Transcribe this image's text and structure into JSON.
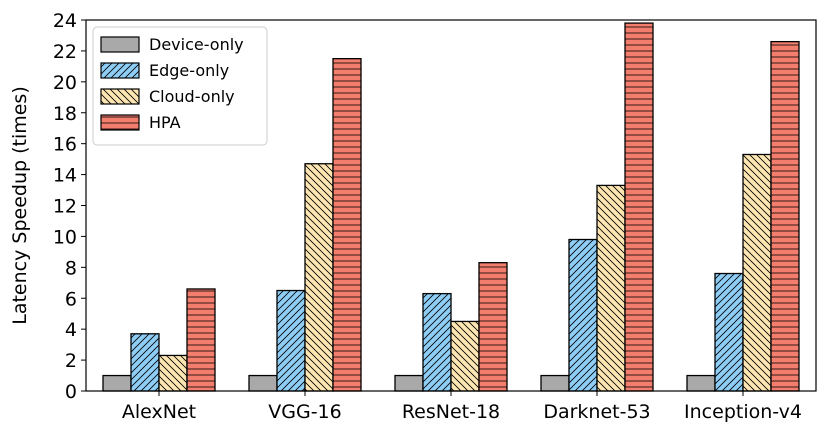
{
  "chart_data": {
    "type": "bar",
    "title": "",
    "xlabel": "",
    "ylabel": "Latency Speedup (times)",
    "ylim": [
      0,
      24
    ],
    "yticks": [
      "0",
      "2",
      "4",
      "6",
      "8",
      "10",
      "12",
      "14",
      "16",
      "18",
      "20",
      "22",
      "24"
    ],
    "categories": [
      "AlexNet",
      "VGG-16",
      "ResNet-18",
      "Darknet-53",
      "Inception-v4"
    ],
    "legend_location": "top-left",
    "series": [
      {
        "name": "Device-only",
        "color": "#a9a9a9",
        "hatch": "none",
        "values": [
          1,
          1,
          1,
          1,
          1
        ]
      },
      {
        "name": "Edge-only",
        "color": "#8ecdf5",
        "hatch": "forward-diagonal",
        "values": [
          3.7,
          6.5,
          6.3,
          9.8,
          7.6
        ]
      },
      {
        "name": "Cloud-only",
        "color": "#fde6b2",
        "hatch": "back-diagonal",
        "values": [
          2.3,
          14.7,
          4.5,
          13.3,
          15.3
        ]
      },
      {
        "name": "HPA",
        "color": "#f47e6e",
        "hatch": "horizontal",
        "values": [
          6.6,
          21.5,
          8.3,
          23.8,
          22.6
        ]
      }
    ]
  }
}
